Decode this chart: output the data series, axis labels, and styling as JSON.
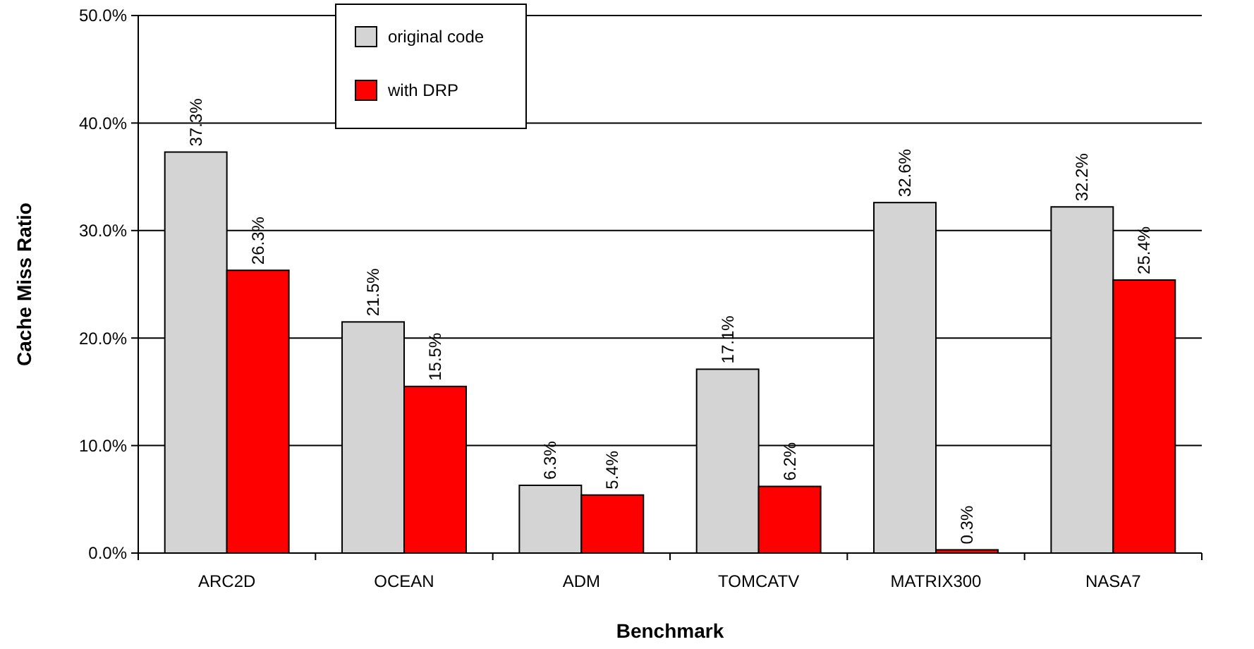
{
  "chart_data": {
    "type": "bar",
    "xlabel": "Benchmark",
    "ylabel": "Cache Miss Ratio",
    "categories": [
      "ARC2D",
      "OCEAN",
      "ADM",
      "TOMCATV",
      "MATRIX300",
      "NASA7"
    ],
    "series": [
      {
        "name": "original code",
        "color": "#d4d4d4",
        "values": [
          37.3,
          21.5,
          6.3,
          17.1,
          32.6,
          32.2
        ],
        "value_labels": [
          "37.3%",
          "21.5%",
          "6.3%",
          "17.1%",
          "32.6%",
          "32.2%"
        ]
      },
      {
        "name": "with DRP",
        "color": "#ff0000",
        "values": [
          26.3,
          15.5,
          5.4,
          6.2,
          0.3,
          25.4
        ],
        "value_labels": [
          "26.3%",
          "15.5%",
          "5.4%",
          "6.2%",
          "0.3%",
          "25.4%"
        ]
      }
    ],
    "ylim": [
      0,
      50
    ],
    "yticks": [
      {
        "value": 0,
        "label": "0.0%"
      },
      {
        "value": 10,
        "label": "10.0%"
      },
      {
        "value": 20,
        "label": "20.0%"
      },
      {
        "value": 30,
        "label": "30.0%"
      },
      {
        "value": 40,
        "label": "40.0%"
      },
      {
        "value": 50,
        "label": "50.0%"
      }
    ],
    "grid": "y",
    "legend": "top"
  }
}
